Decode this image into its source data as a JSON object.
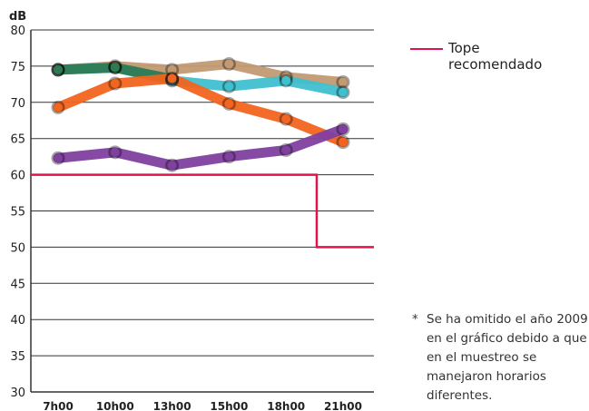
{
  "chart_data": {
    "type": "line",
    "ylabel": "dB",
    "xlabel": "",
    "ylim": [
      30,
      80
    ],
    "yticks": [
      30,
      35,
      40,
      45,
      50,
      55,
      60,
      65,
      70,
      75,
      80
    ],
    "categories": [
      "7h00",
      "10h00",
      "13h00",
      "15h00",
      "18h00",
      "21h00"
    ],
    "grid": "horizontal",
    "series": [
      {
        "color": "#c29a72",
        "values": [
          74.5,
          75.0,
          74.5,
          75.3,
          73.5,
          72.8
        ]
      },
      {
        "color": "#3fc0cf",
        "values": [
          74.5,
          74.8,
          73.0,
          72.2,
          73.0,
          71.4
        ]
      },
      {
        "color": "#2f7a52",
        "values": [
          74.5,
          74.8,
          73.2,
          null,
          null,
          null
        ]
      },
      {
        "color": "#f2641f",
        "values": [
          69.3,
          72.6,
          73.3,
          69.8,
          67.7,
          64.5
        ]
      },
      {
        "color": "#8040a0",
        "values": [
          62.3,
          63.1,
          61.3,
          62.5,
          63.4,
          66.3
        ]
      }
    ],
    "threshold": {
      "name": "Tope recomendado",
      "color": "#e0144c",
      "steps": [
        {
          "from": "7h00",
          "value": 60
        },
        {
          "at_between": [
            "18h00",
            "21h00"
          ],
          "value": 50
        }
      ]
    },
    "legend_position": "top-right"
  },
  "legend": {
    "label": "Tope recomendado"
  },
  "footnote": {
    "marker": "*",
    "text": "Se ha omitido el año 2009 en el gráfico debido a que en el muestreo se manejaron horarios diferentes."
  }
}
